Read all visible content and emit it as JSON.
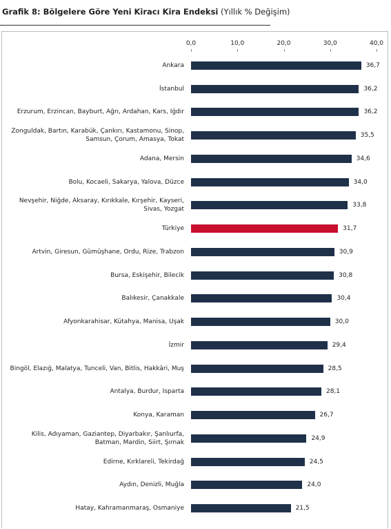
{
  "chart_data": {
    "type": "bar",
    "orientation": "horizontal",
    "title": "Grafik 8: Bölgelere Göre Yeni Kiracı Kira Endeksi",
    "subtitle": "(Yıllık % Değişim)",
    "categories": [
      "Ankara",
      "İstanbul",
      "Erzurum, Erzincan, Bayburt, Ağrı, Ardahan, Kars, Iğdır",
      "Zonguldak, Bartın, Karabük, Çankırı, Kastamonu, Sinop, Samsun, Çorum, Amasya, Tokat",
      "Adana, Mersin",
      "Bolu, Kocaeli, Sakarya, Yalova, Düzce",
      "Nevşehir, Niğde, Aksaray, Kırıkkale, Kırşehir, Kayseri, Sivas, Yozgat",
      "Türkiye",
      "Artvin, Giresun, Gümüşhane, Ordu, Rize, Trabzon",
      "Bursa, Eskişehir, Bilecik",
      "Balıkesir, Çanakkale",
      "Afyonkarahisar, Kütahya, Manisa, Uşak",
      "İzmir",
      "Bingöl, Elazığ, Malatya, Tunceli, Van, Bitlis, Hakkâri, Muş",
      "Antalya, Burdur, Isparta",
      "Konya, Karaman",
      "Kilis, Adıyaman, Gaziantep, Diyarbakır, Şanlıurfa, Batman, Mardin, Siirt, Şırnak",
      "Edirne, Kırklareli, Tekirdağ",
      "Aydın, Denizli, Muğla",
      "Hatay, Kahramanmaraş, Osmaniye"
    ],
    "values": [
      36.7,
      36.2,
      36.2,
      35.5,
      34.6,
      34.0,
      33.8,
      31.7,
      30.9,
      30.8,
      30.4,
      30.0,
      29.4,
      28.5,
      28.1,
      26.7,
      24.9,
      24.5,
      24.0,
      21.5
    ],
    "value_labels": [
      "36,7",
      "36,2",
      "36,2",
      "35,5",
      "34,6",
      "34,0",
      "33,8",
      "31,7",
      "30,9",
      "30,8",
      "30,4",
      "30,0",
      "29,4",
      "28,5",
      "28,1",
      "26,7",
      "24,9",
      "24,5",
      "24,0",
      "21,5"
    ],
    "colors": [
      "#1f3049",
      "#1f3049",
      "#1f3049",
      "#1f3049",
      "#1f3049",
      "#1f3049",
      "#1f3049",
      "#c8102e",
      "#1f3049",
      "#1f3049",
      "#1f3049",
      "#1f3049",
      "#1f3049",
      "#1f3049",
      "#1f3049",
      "#1f3049",
      "#1f3049",
      "#1f3049",
      "#1f3049",
      "#1f3049"
    ],
    "xlim": [
      0,
      40
    ],
    "xticks": [
      {
        "value": 0,
        "label": "0,0"
      },
      {
        "value": 10,
        "label": "10,0"
      },
      {
        "value": 20,
        "label": "20,0"
      },
      {
        "value": 30,
        "label": "30,0"
      },
      {
        "value": 40,
        "label": "40,0"
      }
    ]
  }
}
